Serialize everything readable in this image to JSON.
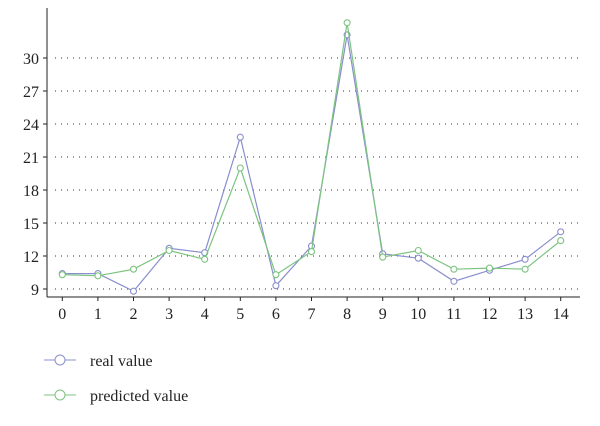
{
  "chart_data": {
    "type": "line",
    "title": "",
    "xlabel": "",
    "ylabel": "",
    "x": [
      0,
      1,
      2,
      3,
      4,
      5,
      6,
      7,
      8,
      9,
      10,
      11,
      12,
      13,
      14
    ],
    "x_ticks": [
      "0",
      "1",
      "2",
      "3",
      "4",
      "5",
      "6",
      "7",
      "8",
      "9",
      "10",
      "11",
      "12",
      "13",
      "14"
    ],
    "y_ticks": [
      "9",
      "12",
      "15",
      "18",
      "21",
      "24",
      "27",
      "30"
    ],
    "y_tick_values": [
      9,
      12,
      15,
      18,
      21,
      24,
      27,
      30
    ],
    "xlim": [
      -0.45,
      14.35
    ],
    "ylim": [
      8.5,
      33.2
    ],
    "grid": "horizontal dotted",
    "legend_position": "bottom-left",
    "series": [
      {
        "name": "real value",
        "color": "#8a8fce",
        "values": [
          10.4,
          10.4,
          8.8,
          12.7,
          12.3,
          22.8,
          9.3,
          12.9,
          32.1,
          12.2,
          11.8,
          9.7,
          10.7,
          11.7,
          14.2
        ]
      },
      {
        "name": "predicted value",
        "color": "#7cc47f",
        "values": [
          10.3,
          10.2,
          10.8,
          12.5,
          11.7,
          20.0,
          10.3,
          12.4,
          33.2,
          11.9,
          12.5,
          10.8,
          10.9,
          10.8,
          13.4
        ]
      }
    ]
  }
}
